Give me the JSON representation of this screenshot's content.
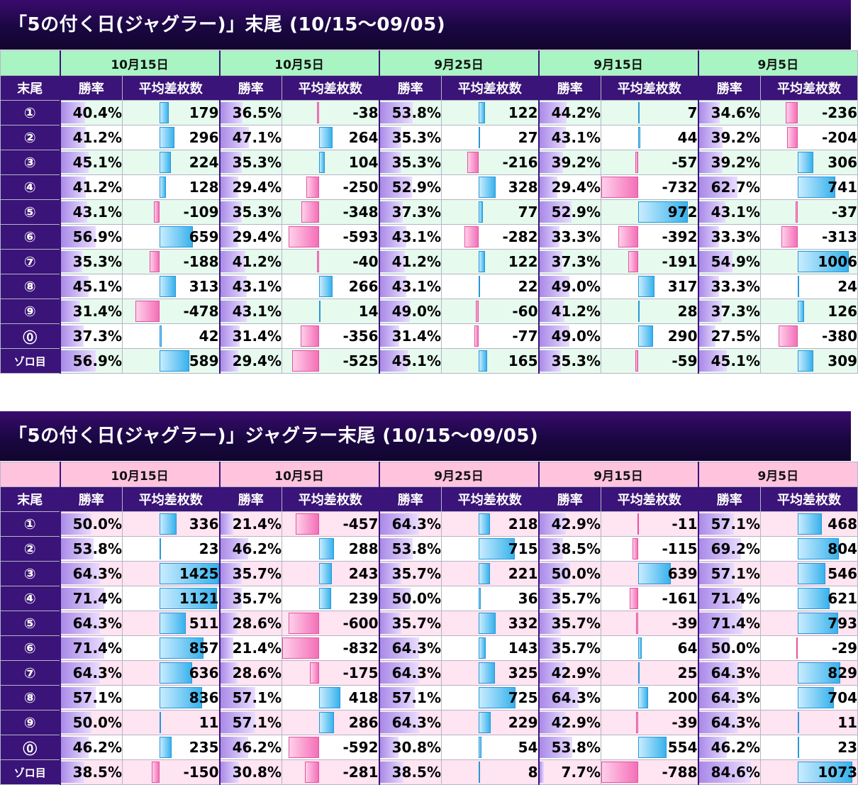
{
  "row_labels": [
    "①",
    "②",
    "③",
    "④",
    "⑤",
    "⑥",
    "⑦",
    "⑧",
    "⑨",
    "⓪",
    "ゾロ目"
  ],
  "col_labels": {
    "corner": "末尾",
    "rate": "勝率",
    "diff": "平均差枚数"
  },
  "colors": {
    "header_purple": "#3a1478",
    "pos_bar": "#38b2ec",
    "neg_bar": "#f46fb8",
    "rate_bar": "#a98ae8"
  },
  "tables": [
    {
      "title": "「5の付く日(ジャグラー)」末尾 (10/15〜09/05)",
      "dates": [
        "10月15日",
        "10月5日",
        "9月25日",
        "9月15日",
        "9月5日"
      ],
      "rows": [
        [
          [
            "40.4%",
            179
          ],
          [
            "36.5%",
            -38
          ],
          [
            "53.8%",
            122
          ],
          [
            "44.2%",
            7
          ],
          [
            "34.6%",
            -236
          ]
        ],
        [
          [
            "41.2%",
            296
          ],
          [
            "47.1%",
            264
          ],
          [
            "35.3%",
            27
          ],
          [
            "43.1%",
            44
          ],
          [
            "39.2%",
            -204
          ]
        ],
        [
          [
            "45.1%",
            224
          ],
          [
            "35.3%",
            104
          ],
          [
            "35.3%",
            -216
          ],
          [
            "39.2%",
            -57
          ],
          [
            "39.2%",
            306
          ]
        ],
        [
          [
            "41.2%",
            128
          ],
          [
            "29.4%",
            -250
          ],
          [
            "52.9%",
            328
          ],
          [
            "29.4%",
            -732
          ],
          [
            "62.7%",
            741
          ]
        ],
        [
          [
            "43.1%",
            -109
          ],
          [
            "35.3%",
            -348
          ],
          [
            "37.3%",
            77
          ],
          [
            "52.9%",
            972
          ],
          [
            "43.1%",
            -37
          ]
        ],
        [
          [
            "56.9%",
            659
          ],
          [
            "29.4%",
            -593
          ],
          [
            "43.1%",
            -282
          ],
          [
            "33.3%",
            -392
          ],
          [
            "33.3%",
            -313
          ]
        ],
        [
          [
            "35.3%",
            -188
          ],
          [
            "41.2%",
            -40
          ],
          [
            "41.2%",
            122
          ],
          [
            "37.3%",
            -191
          ],
          [
            "54.9%",
            1006
          ]
        ],
        [
          [
            "45.1%",
            313
          ],
          [
            "43.1%",
            266
          ],
          [
            "43.1%",
            22
          ],
          [
            "49.0%",
            317
          ],
          [
            "33.3%",
            24
          ]
        ],
        [
          [
            "31.4%",
            -478
          ],
          [
            "43.1%",
            14
          ],
          [
            "49.0%",
            -60
          ],
          [
            "41.2%",
            28
          ],
          [
            "37.3%",
            126
          ]
        ],
        [
          [
            "37.3%",
            42
          ],
          [
            "31.4%",
            -356
          ],
          [
            "31.4%",
            -77
          ],
          [
            "49.0%",
            290
          ],
          [
            "27.5%",
            -380
          ]
        ],
        [
          [
            "56.9%",
            589
          ],
          [
            "29.4%",
            -525
          ],
          [
            "45.1%",
            165
          ],
          [
            "35.3%",
            -59
          ],
          [
            "45.1%",
            309
          ]
        ]
      ]
    },
    {
      "title": "「5の付く日(ジャグラー)」ジャグラー末尾 (10/15〜09/05)",
      "dates": [
        "10月15日",
        "10月5日",
        "9月25日",
        "9月15日",
        "9月5日"
      ],
      "rows": [
        [
          [
            "50.0%",
            336
          ],
          [
            "21.4%",
            -457
          ],
          [
            "64.3%",
            218
          ],
          [
            "42.9%",
            -11
          ],
          [
            "57.1%",
            468
          ]
        ],
        [
          [
            "53.8%",
            23
          ],
          [
            "46.2%",
            288
          ],
          [
            "53.8%",
            715
          ],
          [
            "38.5%",
            -115
          ],
          [
            "69.2%",
            804
          ]
        ],
        [
          [
            "64.3%",
            1425
          ],
          [
            "35.7%",
            243
          ],
          [
            "35.7%",
            221
          ],
          [
            "50.0%",
            639
          ],
          [
            "57.1%",
            546
          ]
        ],
        [
          [
            "71.4%",
            1121
          ],
          [
            "35.7%",
            239
          ],
          [
            "50.0%",
            36
          ],
          [
            "35.7%",
            -161
          ],
          [
            "71.4%",
            621
          ]
        ],
        [
          [
            "64.3%",
            511
          ],
          [
            "28.6%",
            -600
          ],
          [
            "35.7%",
            332
          ],
          [
            "35.7%",
            -39
          ],
          [
            "71.4%",
            793
          ]
        ],
        [
          [
            "71.4%",
            857
          ],
          [
            "21.4%",
            -832
          ],
          [
            "64.3%",
            143
          ],
          [
            "35.7%",
            64
          ],
          [
            "50.0%",
            -29
          ]
        ],
        [
          [
            "64.3%",
            636
          ],
          [
            "28.6%",
            -175
          ],
          [
            "64.3%",
            325
          ],
          [
            "42.9%",
            25
          ],
          [
            "64.3%",
            829
          ]
        ],
        [
          [
            "57.1%",
            836
          ],
          [
            "57.1%",
            418
          ],
          [
            "57.1%",
            725
          ],
          [
            "64.3%",
            200
          ],
          [
            "64.3%",
            704
          ]
        ],
        [
          [
            "50.0%",
            11
          ],
          [
            "57.1%",
            286
          ],
          [
            "64.3%",
            229
          ],
          [
            "42.9%",
            -39
          ],
          [
            "64.3%",
            11
          ]
        ],
        [
          [
            "46.2%",
            235
          ],
          [
            "46.2%",
            -592
          ],
          [
            "30.8%",
            54
          ],
          [
            "53.8%",
            554
          ],
          [
            "46.2%",
            23
          ]
        ],
        [
          [
            "38.5%",
            -150
          ],
          [
            "30.8%",
            -281
          ],
          [
            "38.5%",
            8
          ],
          [
            "7.7%",
            -788
          ],
          [
            "84.6%",
            1073
          ]
        ]
      ]
    }
  ]
}
